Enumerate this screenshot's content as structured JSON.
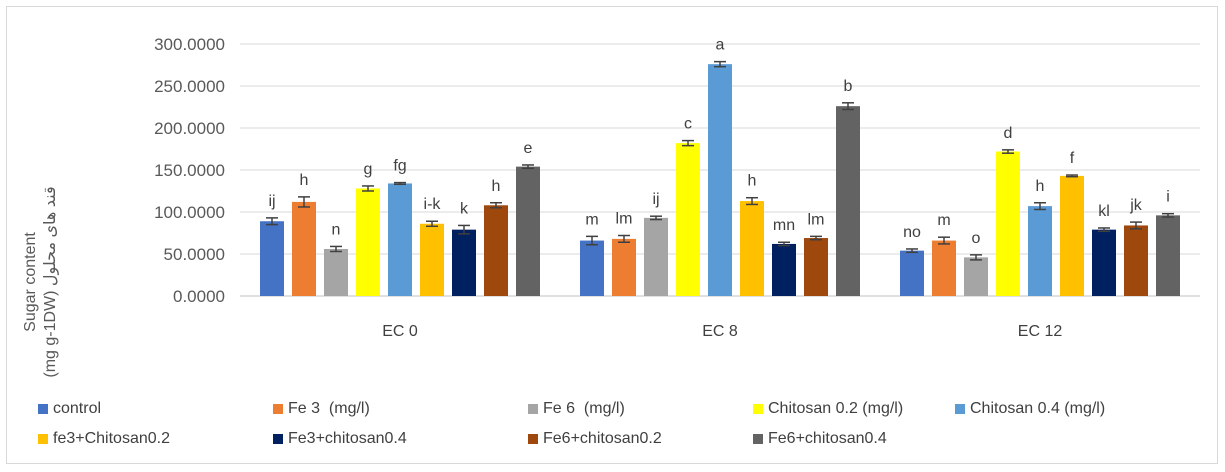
{
  "chart_data": {
    "type": "bar",
    "categories": [
      "EC 0",
      "EC 8",
      "EC 12"
    ],
    "ylabel_line1": "Sugar content",
    "ylabel_line2": "(mg g-1DW) قند های محلول",
    "ylim": [
      0,
      300
    ],
    "yticks": [
      "0.0000",
      "50.0000",
      "100.0000",
      "150.0000",
      "200.0000",
      "250.0000",
      "300.0000"
    ],
    "yticks_values": [
      0,
      50,
      100,
      150,
      200,
      250,
      300
    ],
    "grid": "horizontal",
    "legend_position": "bottom",
    "series": [
      {
        "name": "control",
        "color": "#4472C4",
        "values": [
          89,
          66,
          54
        ],
        "errors": [
          4,
          5,
          2
        ],
        "labels": [
          "ij",
          "m",
          "no"
        ]
      },
      {
        "name": "Fe 3  (mg/l)",
        "color": "#ED7D31",
        "values": [
          112,
          68,
          66
        ],
        "errors": [
          6,
          4,
          4
        ],
        "labels": [
          "h",
          "lm",
          "m"
        ]
      },
      {
        "name": "Fe 6  (mg/l)",
        "color": "#A5A5A5",
        "values": [
          56,
          93,
          46
        ],
        "errors": [
          3,
          2,
          3
        ],
        "labels": [
          "n",
          "ij",
          "o"
        ]
      },
      {
        "name": "Chitosan 0.2 (mg/l)",
        "color": "#FFFF00",
        "values": [
          128,
          182,
          172
        ],
        "errors": [
          3,
          3,
          2
        ],
        "labels": [
          "g",
          "c",
          "d"
        ]
      },
      {
        "name": "Chitosan 0.4 (mg/l)",
        "color": "#5B9BD5",
        "values": [
          134,
          276,
          107
        ],
        "errors": [
          1,
          3,
          4
        ],
        "labels": [
          "fg",
          "a",
          "h"
        ]
      },
      {
        "name": "fe3+Chitosan0.2",
        "color": "#FFC000",
        "values": [
          86,
          113,
          143
        ],
        "errors": [
          3,
          4,
          1
        ],
        "labels": [
          "i-k",
          "h",
          "f"
        ]
      },
      {
        "name": "Fe3+chitosan0.4",
        "color": "#002060",
        "values": [
          79,
          62,
          79
        ],
        "errors": [
          5,
          2,
          2
        ],
        "labels": [
          "k",
          "mn",
          "kl"
        ]
      },
      {
        "name": "Fe6+chitosan0.2",
        "color": "#9E480E",
        "values": [
          108,
          69,
          84
        ],
        "errors": [
          3,
          2,
          4
        ],
        "labels": [
          "h",
          "lm",
          "jk"
        ]
      },
      {
        "name": "Fe6+chitosan0.4",
        "color": "#636363",
        "values": [
          154,
          226,
          96
        ],
        "errors": [
          2,
          4,
          2
        ],
        "labels": [
          "e",
          "b",
          "i"
        ]
      }
    ]
  }
}
